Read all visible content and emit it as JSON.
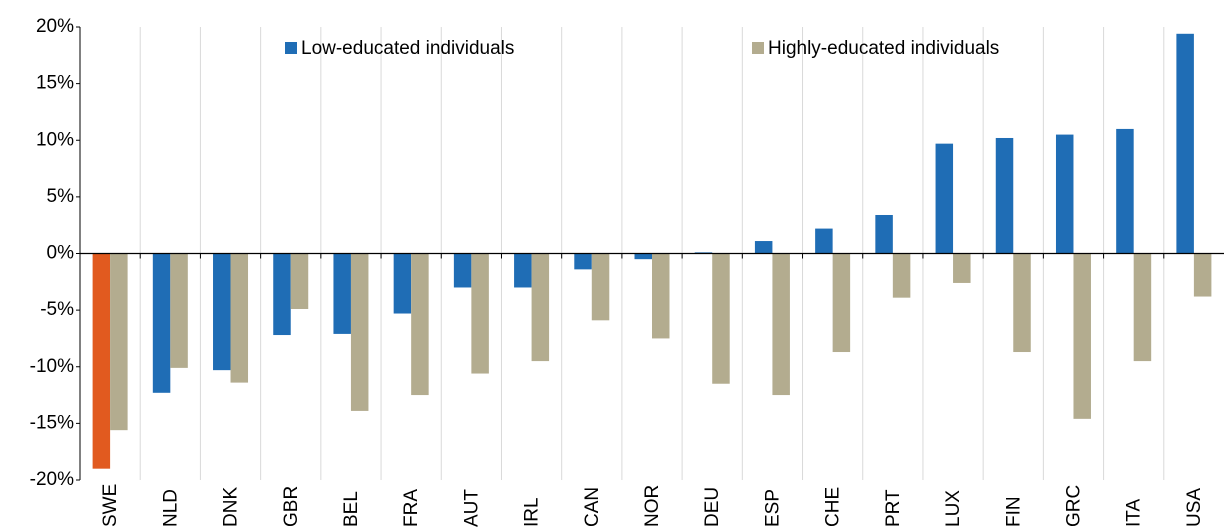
{
  "chart_data": {
    "type": "bar",
    "categories": [
      "SWE",
      "NLD",
      "DNK",
      "GBR",
      "BEL",
      "FRA",
      "AUT",
      "IRL",
      "CAN",
      "NOR",
      "DEU",
      "ESP",
      "CHE",
      "PRT",
      "LUX",
      "FIN",
      "GRC",
      "ITA",
      "USA"
    ],
    "series": [
      {
        "name": "Low-educated individuals",
        "color": "#1f6db5",
        "colors": [
          "#e15a1f",
          "#1f6db5",
          "#1f6db5",
          "#1f6db5",
          "#1f6db5",
          "#1f6db5",
          "#1f6db5",
          "#1f6db5",
          "#1f6db5",
          "#1f6db5",
          "#1f6db5",
          "#1f6db5",
          "#1f6db5",
          "#1f6db5",
          "#1f6db5",
          "#1f6db5",
          "#1f6db5",
          "#1f6db5",
          "#1f6db5"
        ],
        "values": [
          -19.0,
          -12.3,
          -10.3,
          -7.2,
          -7.1,
          -5.3,
          -3.0,
          -3.0,
          -1.4,
          -0.5,
          0.1,
          1.1,
          2.2,
          3.4,
          9.7,
          10.2,
          10.5,
          11.0,
          19.4
        ]
      },
      {
        "name": "Highly-educated individuals",
        "color": "#b3ac8f",
        "values": [
          -15.6,
          -10.1,
          -11.4,
          -4.9,
          -13.9,
          -12.5,
          -10.6,
          -9.5,
          -5.9,
          -7.5,
          -11.5,
          -12.5,
          -8.7,
          -3.9,
          -2.6,
          -8.7,
          -14.6,
          -9.5,
          -3.8
        ]
      }
    ],
    "ylim": [
      -20,
      20
    ],
    "yticks": [
      {
        "value": -20,
        "label": "-20%"
      },
      {
        "value": -15,
        "label": "-15%"
      },
      {
        "value": -10,
        "label": "-10%"
      },
      {
        "value": -5,
        "label": "-5%"
      },
      {
        "value": 0,
        "label": "0%"
      },
      {
        "value": 5,
        "label": "5%"
      },
      {
        "value": 10,
        "label": "10%"
      },
      {
        "value": 15,
        "label": "15%"
      },
      {
        "value": 20,
        "label": "20%"
      }
    ],
    "legend": "top"
  }
}
